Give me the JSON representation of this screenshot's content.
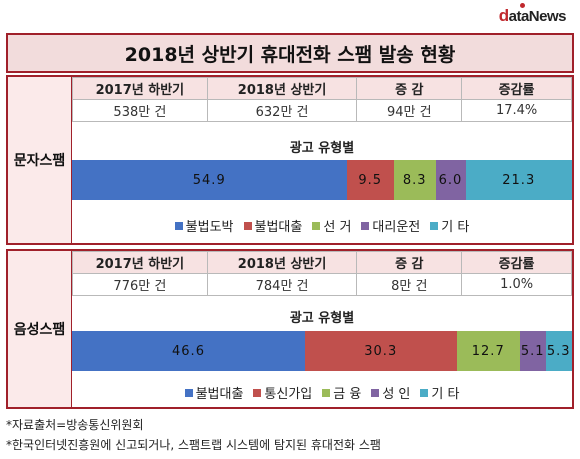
{
  "logo": {
    "first": "d",
    "rest": "ataNews"
  },
  "title": "2018년 상반기 휴대전화 스팸 발송 현황",
  "colors": {
    "illegal_gambling": "#4472c4",
    "illegal_loan": "#c0504d",
    "loan": "#c0504d",
    "election": "#9bbb59",
    "finance": "#9bbb59",
    "proxy_driving": "#8064a2",
    "adult": "#8064a2",
    "telecom": "#c0504d",
    "other": "#4bacc6"
  },
  "panels": [
    {
      "label": "문자스팸",
      "headers": [
        "2017년 하반기",
        "2018년 상반기",
        "증 감",
        "증감률"
      ],
      "values": [
        "538만 건",
        "632만 건",
        "94만 건",
        "17.4%"
      ],
      "subtitle": "광고 유형별",
      "legend_marker": "■",
      "legend": [
        "불법도박",
        "불법대출",
        "선 거",
        "대리운전",
        "기 타"
      ]
    },
    {
      "label": "음성스팸",
      "headers": [
        "2017년 하반기",
        "2018년 상반기",
        "증 감",
        "증감률"
      ],
      "values": [
        "776만 건",
        "784만 건",
        "8만 건",
        "1.0%"
      ],
      "subtitle": "광고 유형별",
      "legend_marker": "■",
      "legend": [
        "불법대출",
        "통신가입",
        "금 융",
        "성 인",
        "기 타"
      ]
    }
  ],
  "chart_data": [
    {
      "type": "bar",
      "orientation": "horizontal-stacked",
      "title": "광고 유형별",
      "categories": [
        "불법도박",
        "불법대출",
        "선 거",
        "대리운전",
        "기 타"
      ],
      "values": [
        54.9,
        9.5,
        8.3,
        6.0,
        21.3
      ],
      "labels": [
        "54.9",
        "9.5",
        "8.3",
        "6.0",
        "21.3"
      ],
      "colors": [
        "#4472c4",
        "#c0504d",
        "#9bbb59",
        "#8064a2",
        "#4bacc6"
      ],
      "legend": "bottom"
    },
    {
      "type": "bar",
      "orientation": "horizontal-stacked",
      "title": "광고 유형별",
      "categories": [
        "불법대출",
        "통신가입",
        "금 융",
        "성 인",
        "기 타"
      ],
      "values": [
        46.6,
        30.3,
        12.7,
        5.1,
        5.3
      ],
      "labels": [
        "46.6",
        "30.3",
        "12.7",
        "5.1",
        "5.3"
      ],
      "colors": [
        "#4472c4",
        "#c0504d",
        "#9bbb59",
        "#8064a2",
        "#4bacc6"
      ],
      "legend": "bottom"
    }
  ],
  "notes": [
    "*자료출처=방송통신위원회",
    "*한국인터넷진흥원에 신고되거나, 스팸트랩 시스템에 탐지된 휴대전화 스팸"
  ]
}
